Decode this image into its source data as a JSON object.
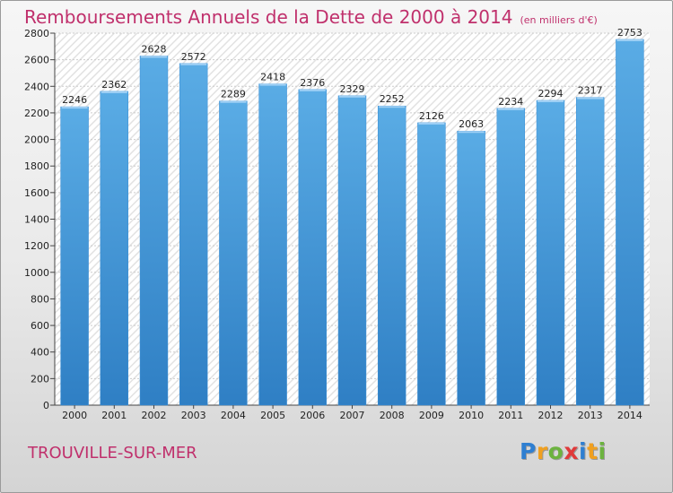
{
  "header": {
    "title": "Remboursements Annuels de la Dette de 2000 à 2014",
    "subtitle": "(en milliers d'€)"
  },
  "footer": {
    "city": "TROUVILLE-SUR-MER",
    "logo": {
      "letters": [
        "P",
        "r",
        "o",
        "x",
        "i",
        "t",
        "i"
      ],
      "colors": [
        "#2f7fd1",
        "#f0a020",
        "#6cb33f",
        "#e03a3a",
        "#2f7fd1",
        "#f0a020",
        "#6cb33f"
      ]
    }
  },
  "colors": {
    "bar": "#5aace5",
    "bar_dark": "#2f7fc4",
    "title": "#c0306c",
    "plot_bg": "#ffffff",
    "grid": "#cccccc"
  },
  "chart_data": {
    "type": "bar",
    "title": "Remboursements Annuels de la Dette de 2000 à 2014",
    "xlabel": "",
    "ylabel": "",
    "categories": [
      "2000",
      "2001",
      "2002",
      "2003",
      "2004",
      "2005",
      "2006",
      "2007",
      "2008",
      "2009",
      "2010",
      "2011",
      "2012",
      "2013",
      "2014"
    ],
    "values": [
      2246,
      2362,
      2628,
      2572,
      2289,
      2418,
      2376,
      2329,
      2252,
      2126,
      2063,
      2234,
      2294,
      2317,
      2753
    ],
    "ylim": [
      0,
      2800
    ],
    "yticks": [
      0,
      200,
      400,
      600,
      800,
      1000,
      1200,
      1400,
      1600,
      1800,
      2000,
      2200,
      2400,
      2600,
      2800
    ],
    "grid": true
  }
}
